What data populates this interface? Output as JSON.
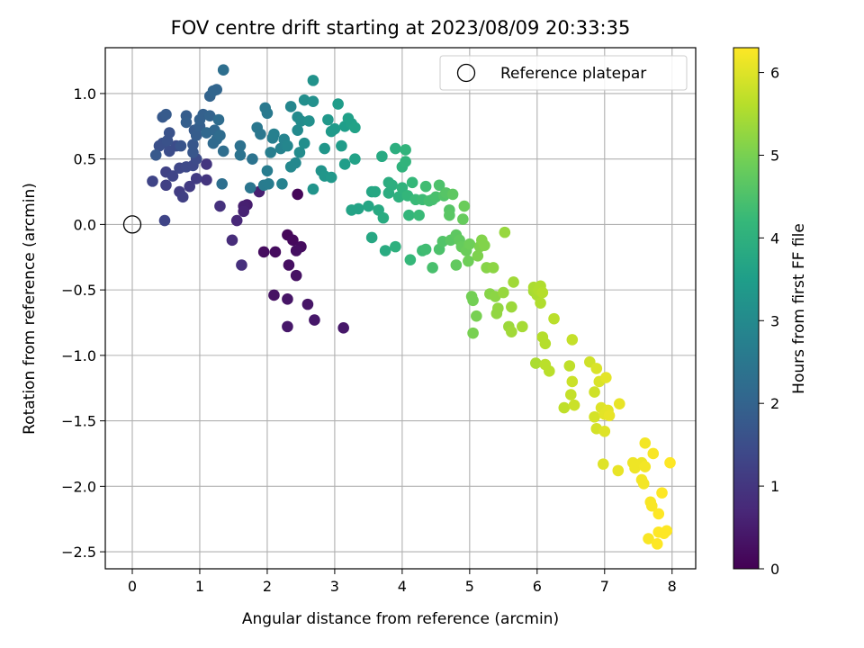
{
  "chart_data": {
    "type": "scatter",
    "title": "FOV centre drift starting at 2023/08/09 20:33:35",
    "xlabel": "Angular distance from reference (arcmin)",
    "ylabel": "Rotation from reference (arcmin)",
    "xlim": [
      -0.4,
      8.35
    ],
    "ylim": [
      -2.63,
      1.35
    ],
    "xticks": [
      "0",
      "1",
      "2",
      "3",
      "4",
      "5",
      "6",
      "7",
      "8"
    ],
    "xtick_values": [
      0,
      1,
      2,
      3,
      4,
      5,
      6,
      7,
      8
    ],
    "yticks": [
      "1.0",
      "0.5",
      "0.0",
      "−0.5",
      "−1.0",
      "−1.5",
      "−2.0",
      "−2.5"
    ],
    "ytick_values": [
      1.0,
      0.5,
      0.0,
      -0.5,
      -1.0,
      -1.5,
      -2.0,
      -2.5
    ],
    "grid": true,
    "legend": {
      "placement": "top-right",
      "entries": [
        {
          "label": "Reference platepar",
          "marker": "open-circle"
        }
      ]
    },
    "reference_point": {
      "x": 0,
      "y": 0
    },
    "colorbar": {
      "label": "Hours from first FF file",
      "colormap": "viridis",
      "range": [
        0,
        6.3
      ],
      "ticks": [
        "0",
        "1",
        "2",
        "3",
        "4",
        "5",
        "6"
      ],
      "tick_values": [
        0,
        1,
        2,
        3,
        4,
        5,
        6
      ]
    },
    "colormap_stops": [
      "#440154",
      "#482878",
      "#3e4989",
      "#31688e",
      "#26828e",
      "#1f9e89",
      "#35b779",
      "#6ece58",
      "#b5de2b",
      "#fde725"
    ],
    "points": [
      {
        "x": 2.45,
        "y": 0.23,
        "h": 0.1
      },
      {
        "x": 2.3,
        "y": -0.08,
        "h": 0.1
      },
      {
        "x": 2.38,
        "y": -0.12,
        "h": 0.15
      },
      {
        "x": 2.5,
        "y": -0.17,
        "h": 0.2
      },
      {
        "x": 1.95,
        "y": -0.21,
        "h": 0.2
      },
      {
        "x": 2.12,
        "y": -0.21,
        "h": 0.2
      },
      {
        "x": 2.32,
        "y": -0.31,
        "h": 0.25
      },
      {
        "x": 2.43,
        "y": -0.2,
        "h": 0.25
      },
      {
        "x": 2.43,
        "y": -0.39,
        "h": 0.3
      },
      {
        "x": 2.1,
        "y": -0.54,
        "h": 0.3
      },
      {
        "x": 2.3,
        "y": -0.57,
        "h": 0.35
      },
      {
        "x": 2.6,
        "y": -0.61,
        "h": 0.35
      },
      {
        "x": 2.3,
        "y": -0.78,
        "h": 0.4
      },
      {
        "x": 2.7,
        "y": -0.73,
        "h": 0.4
      },
      {
        "x": 3.13,
        "y": -0.79,
        "h": 0.4
      },
      {
        "x": 1.7,
        "y": 0.15,
        "h": 0.5
      },
      {
        "x": 1.65,
        "y": 0.14,
        "h": 0.55
      },
      {
        "x": 1.88,
        "y": 0.25,
        "h": 0.55
      },
      {
        "x": 1.65,
        "y": 0.1,
        "h": 0.6
      },
      {
        "x": 1.55,
        "y": 0.03,
        "h": 0.7
      },
      {
        "x": 1.48,
        "y": -0.12,
        "h": 0.8
      },
      {
        "x": 1.62,
        "y": -0.31,
        "h": 0.85
      },
      {
        "x": 1.3,
        "y": 0.14,
        "h": 0.9
      },
      {
        "x": 1.1,
        "y": 0.34,
        "h": 1.0
      },
      {
        "x": 1.1,
        "y": 0.46,
        "h": 1.0
      },
      {
        "x": 0.85,
        "y": 0.29,
        "h": 1.1
      },
      {
        "x": 0.95,
        "y": 0.35,
        "h": 1.1
      },
      {
        "x": 0.7,
        "y": 0.25,
        "h": 1.15
      },
      {
        "x": 0.75,
        "y": 0.21,
        "h": 1.2
      },
      {
        "x": 0.5,
        "y": 0.3,
        "h": 1.2
      },
      {
        "x": 0.5,
        "y": 0.4,
        "h": 1.25
      },
      {
        "x": 0.6,
        "y": 0.37,
        "h": 1.3
      },
      {
        "x": 0.3,
        "y": 0.33,
        "h": 1.3
      },
      {
        "x": 0.48,
        "y": 0.03,
        "h": 1.3
      },
      {
        "x": 0.7,
        "y": 0.43,
        "h": 1.35
      },
      {
        "x": 0.8,
        "y": 0.44,
        "h": 1.4
      },
      {
        "x": 0.9,
        "y": 0.45,
        "h": 1.4
      },
      {
        "x": 0.95,
        "y": 0.5,
        "h": 1.45
      },
      {
        "x": 0.55,
        "y": 0.56,
        "h": 1.5
      },
      {
        "x": 0.65,
        "y": 0.6,
        "h": 1.5
      },
      {
        "x": 0.4,
        "y": 0.6,
        "h": 1.55
      },
      {
        "x": 0.45,
        "y": 0.62,
        "h": 1.55
      },
      {
        "x": 0.52,
        "y": 0.64,
        "h": 1.6
      },
      {
        "x": 0.55,
        "y": 0.7,
        "h": 1.6
      },
      {
        "x": 0.72,
        "y": 0.6,
        "h": 1.65
      },
      {
        "x": 0.9,
        "y": 0.61,
        "h": 1.7
      },
      {
        "x": 0.9,
        "y": 0.55,
        "h": 1.7
      },
      {
        "x": 0.35,
        "y": 0.53,
        "h": 1.75
      },
      {
        "x": 0.45,
        "y": 0.82,
        "h": 1.75
      },
      {
        "x": 0.5,
        "y": 0.84,
        "h": 1.8
      },
      {
        "x": 0.92,
        "y": 0.72,
        "h": 1.8
      },
      {
        "x": 0.95,
        "y": 0.68,
        "h": 1.85
      },
      {
        "x": 0.8,
        "y": 0.83,
        "h": 1.85
      },
      {
        "x": 0.8,
        "y": 0.78,
        "h": 1.9
      },
      {
        "x": 1.0,
        "y": 0.75,
        "h": 1.9
      },
      {
        "x": 1.05,
        "y": 0.84,
        "h": 1.95
      },
      {
        "x": 1.0,
        "y": 0.8,
        "h": 1.95
      },
      {
        "x": 1.15,
        "y": 0.83,
        "h": 2.0
      },
      {
        "x": 1.15,
        "y": 0.98,
        "h": 2.0
      },
      {
        "x": 1.2,
        "y": 1.02,
        "h": 2.05
      },
      {
        "x": 1.25,
        "y": 1.03,
        "h": 2.05
      },
      {
        "x": 1.1,
        "y": 0.7,
        "h": 2.1
      },
      {
        "x": 1.22,
        "y": 0.72,
        "h": 2.1
      },
      {
        "x": 1.2,
        "y": 0.62,
        "h": 2.15
      },
      {
        "x": 1.25,
        "y": 0.65,
        "h": 2.15
      },
      {
        "x": 1.3,
        "y": 0.68,
        "h": 2.2
      },
      {
        "x": 1.28,
        "y": 0.8,
        "h": 2.2
      },
      {
        "x": 1.35,
        "y": 0.56,
        "h": 2.25
      },
      {
        "x": 1.33,
        "y": 0.31,
        "h": 2.3
      },
      {
        "x": 1.35,
        "y": 1.18,
        "h": 2.3
      },
      {
        "x": 1.6,
        "y": 0.6,
        "h": 2.35
      },
      {
        "x": 1.6,
        "y": 0.53,
        "h": 2.4
      },
      {
        "x": 1.78,
        "y": 0.5,
        "h": 2.4
      },
      {
        "x": 1.75,
        "y": 0.28,
        "h": 2.45
      },
      {
        "x": 1.85,
        "y": 0.74,
        "h": 2.5
      },
      {
        "x": 1.9,
        "y": 0.69,
        "h": 2.5
      },
      {
        "x": 1.97,
        "y": 0.89,
        "h": 2.55
      },
      {
        "x": 2.0,
        "y": 0.85,
        "h": 2.55
      },
      {
        "x": 1.95,
        "y": 0.3,
        "h": 2.6
      },
      {
        "x": 2.02,
        "y": 0.31,
        "h": 2.65
      },
      {
        "x": 2.0,
        "y": 0.41,
        "h": 2.65
      },
      {
        "x": 2.05,
        "y": 0.55,
        "h": 2.7
      },
      {
        "x": 2.08,
        "y": 0.66,
        "h": 2.7
      },
      {
        "x": 2.1,
        "y": 0.69,
        "h": 2.75
      },
      {
        "x": 2.22,
        "y": 0.31,
        "h": 2.8
      },
      {
        "x": 2.2,
        "y": 0.58,
        "h": 2.8
      },
      {
        "x": 2.25,
        "y": 0.65,
        "h": 2.85
      },
      {
        "x": 2.3,
        "y": 0.6,
        "h": 2.9
      },
      {
        "x": 2.35,
        "y": 0.9,
        "h": 2.9
      },
      {
        "x": 2.35,
        "y": 0.44,
        "h": 2.95
      },
      {
        "x": 2.42,
        "y": 0.47,
        "h": 2.95
      },
      {
        "x": 2.45,
        "y": 0.82,
        "h": 3.0
      },
      {
        "x": 2.45,
        "y": 0.72,
        "h": 3.0
      },
      {
        "x": 2.48,
        "y": 0.55,
        "h": 3.05
      },
      {
        "x": 2.5,
        "y": 0.79,
        "h": 3.05
      },
      {
        "x": 2.55,
        "y": 0.95,
        "h": 3.1
      },
      {
        "x": 2.55,
        "y": 0.62,
        "h": 3.1
      },
      {
        "x": 2.62,
        "y": 0.79,
        "h": 3.15
      },
      {
        "x": 2.68,
        "y": 0.94,
        "h": 3.15
      },
      {
        "x": 2.68,
        "y": 1.1,
        "h": 3.2
      },
      {
        "x": 2.68,
        "y": 0.27,
        "h": 3.25
      },
      {
        "x": 2.8,
        "y": 0.41,
        "h": 3.25
      },
      {
        "x": 2.85,
        "y": 0.58,
        "h": 3.3
      },
      {
        "x": 2.85,
        "y": 0.37,
        "h": 3.3
      },
      {
        "x": 2.95,
        "y": 0.36,
        "h": 3.35
      },
      {
        "x": 2.9,
        "y": 0.8,
        "h": 3.35
      },
      {
        "x": 2.95,
        "y": 0.71,
        "h": 3.4
      },
      {
        "x": 3.0,
        "y": 0.73,
        "h": 3.4
      },
      {
        "x": 3.05,
        "y": 0.92,
        "h": 3.45
      },
      {
        "x": 3.1,
        "y": 0.6,
        "h": 3.45
      },
      {
        "x": 3.15,
        "y": 0.46,
        "h": 3.5
      },
      {
        "x": 3.15,
        "y": 0.75,
        "h": 3.5
      },
      {
        "x": 3.2,
        "y": 0.81,
        "h": 3.55
      },
      {
        "x": 3.25,
        "y": 0.77,
        "h": 3.55
      },
      {
        "x": 3.3,
        "y": 0.74,
        "h": 3.6
      },
      {
        "x": 3.3,
        "y": 0.5,
        "h": 3.6
      },
      {
        "x": 3.25,
        "y": 0.11,
        "h": 3.65
      },
      {
        "x": 3.35,
        "y": 0.12,
        "h": 3.65
      },
      {
        "x": 3.5,
        "y": 0.14,
        "h": 3.7
      },
      {
        "x": 3.55,
        "y": 0.25,
        "h": 3.7
      },
      {
        "x": 3.55,
        "y": -0.1,
        "h": 3.75
      },
      {
        "x": 3.6,
        "y": 0.25,
        "h": 3.75
      },
      {
        "x": 3.65,
        "y": 0.11,
        "h": 3.8
      },
      {
        "x": 3.7,
        "y": 0.52,
        "h": 3.8
      },
      {
        "x": 3.72,
        "y": 0.05,
        "h": 3.85
      },
      {
        "x": 3.75,
        "y": -0.2,
        "h": 3.85
      },
      {
        "x": 3.8,
        "y": 0.32,
        "h": 3.9
      },
      {
        "x": 3.8,
        "y": 0.24,
        "h": 3.9
      },
      {
        "x": 3.85,
        "y": 0.3,
        "h": 3.95
      },
      {
        "x": 3.9,
        "y": 0.58,
        "h": 3.95
      },
      {
        "x": 3.9,
        "y": -0.17,
        "h": 4.0
      },
      {
        "x": 3.95,
        "y": 0.21,
        "h": 4.0
      },
      {
        "x": 4.0,
        "y": 0.28,
        "h": 4.05
      },
      {
        "x": 4.0,
        "y": 0.44,
        "h": 4.05
      },
      {
        "x": 4.05,
        "y": 0.48,
        "h": 4.1
      },
      {
        "x": 4.05,
        "y": 0.57,
        "h": 4.1
      },
      {
        "x": 4.08,
        "y": 0.22,
        "h": 4.15
      },
      {
        "x": 4.1,
        "y": 0.07,
        "h": 4.15
      },
      {
        "x": 4.12,
        "y": -0.27,
        "h": 4.2
      },
      {
        "x": 4.15,
        "y": 0.32,
        "h": 4.2
      },
      {
        "x": 4.2,
        "y": 0.19,
        "h": 4.25
      },
      {
        "x": 4.25,
        "y": 0.07,
        "h": 4.25
      },
      {
        "x": 4.3,
        "y": 0.19,
        "h": 4.3
      },
      {
        "x": 4.3,
        "y": -0.2,
        "h": 4.3
      },
      {
        "x": 4.35,
        "y": 0.29,
        "h": 4.35
      },
      {
        "x": 4.35,
        "y": -0.19,
        "h": 4.35
      },
      {
        "x": 4.4,
        "y": 0.18,
        "h": 4.4
      },
      {
        "x": 4.45,
        "y": 0.19,
        "h": 4.4
      },
      {
        "x": 4.45,
        "y": -0.33,
        "h": 4.45
      },
      {
        "x": 4.5,
        "y": 0.21,
        "h": 4.45
      },
      {
        "x": 4.55,
        "y": 0.3,
        "h": 4.5
      },
      {
        "x": 4.55,
        "y": -0.19,
        "h": 4.5
      },
      {
        "x": 4.6,
        "y": -0.13,
        "h": 4.55
      },
      {
        "x": 4.62,
        "y": 0.22,
        "h": 4.55
      },
      {
        "x": 4.65,
        "y": 0.24,
        "h": 4.6
      },
      {
        "x": 4.7,
        "y": 0.11,
        "h": 4.6
      },
      {
        "x": 4.7,
        "y": 0.07,
        "h": 4.65
      },
      {
        "x": 4.72,
        "y": -0.12,
        "h": 4.65
      },
      {
        "x": 4.75,
        "y": 0.23,
        "h": 4.7
      },
      {
        "x": 4.8,
        "y": -0.08,
        "h": 4.7
      },
      {
        "x": 4.8,
        "y": -0.31,
        "h": 4.75
      },
      {
        "x": 4.85,
        "y": -0.12,
        "h": 4.75
      },
      {
        "x": 4.88,
        "y": -0.17,
        "h": 4.8
      },
      {
        "x": 4.9,
        "y": 0.04,
        "h": 4.8
      },
      {
        "x": 4.92,
        "y": 0.14,
        "h": 4.85
      },
      {
        "x": 4.95,
        "y": -0.2,
        "h": 4.85
      },
      {
        "x": 4.98,
        "y": -0.28,
        "h": 4.9
      },
      {
        "x": 5.0,
        "y": -0.15,
        "h": 4.9
      },
      {
        "x": 5.03,
        "y": -0.55,
        "h": 4.95
      },
      {
        "x": 5.05,
        "y": -0.58,
        "h": 4.95
      },
      {
        "x": 5.05,
        "y": -0.83,
        "h": 5.0
      },
      {
        "x": 5.1,
        "y": -0.7,
        "h": 5.0
      },
      {
        "x": 5.12,
        "y": -0.24,
        "h": 5.05
      },
      {
        "x": 5.15,
        "y": -0.17,
        "h": 5.05
      },
      {
        "x": 5.18,
        "y": -0.12,
        "h": 5.1
      },
      {
        "x": 5.22,
        "y": -0.16,
        "h": 5.1
      },
      {
        "x": 5.25,
        "y": -0.33,
        "h": 5.15
      },
      {
        "x": 5.3,
        "y": -0.53,
        "h": 5.15
      },
      {
        "x": 5.35,
        "y": -0.33,
        "h": 5.2
      },
      {
        "x": 5.38,
        "y": -0.55,
        "h": 5.2
      },
      {
        "x": 5.4,
        "y": -0.68,
        "h": 5.25
      },
      {
        "x": 5.42,
        "y": -0.64,
        "h": 5.25
      },
      {
        "x": 5.5,
        "y": -0.52,
        "h": 5.3
      },
      {
        "x": 5.52,
        "y": -0.06,
        "h": 5.3
      },
      {
        "x": 5.58,
        "y": -0.78,
        "h": 5.35
      },
      {
        "x": 5.62,
        "y": -0.63,
        "h": 5.35
      },
      {
        "x": 5.62,
        "y": -0.82,
        "h": 5.4
      },
      {
        "x": 5.65,
        "y": -0.44,
        "h": 5.4
      },
      {
        "x": 5.78,
        "y": -0.78,
        "h": 5.45
      },
      {
        "x": 5.95,
        "y": -0.51,
        "h": 5.45
      },
      {
        "x": 5.95,
        "y": -0.48,
        "h": 5.5
      },
      {
        "x": 5.98,
        "y": -1.06,
        "h": 5.5
      },
      {
        "x": 6.0,
        "y": -0.54,
        "h": 5.5
      },
      {
        "x": 6.02,
        "y": -0.5,
        "h": 5.55
      },
      {
        "x": 6.05,
        "y": -0.47,
        "h": 5.55
      },
      {
        "x": 6.05,
        "y": -0.6,
        "h": 5.55
      },
      {
        "x": 6.08,
        "y": -0.52,
        "h": 5.6
      },
      {
        "x": 6.08,
        "y": -0.86,
        "h": 5.6
      },
      {
        "x": 6.12,
        "y": -0.91,
        "h": 5.6
      },
      {
        "x": 6.12,
        "y": -1.07,
        "h": 5.65
      },
      {
        "x": 6.18,
        "y": -1.12,
        "h": 5.65
      },
      {
        "x": 6.25,
        "y": -0.72,
        "h": 5.65
      },
      {
        "x": 6.4,
        "y": -1.4,
        "h": 5.7
      },
      {
        "x": 6.48,
        "y": -1.08,
        "h": 5.7
      },
      {
        "x": 6.5,
        "y": -1.3,
        "h": 5.75
      },
      {
        "x": 6.52,
        "y": -0.88,
        "h": 5.75
      },
      {
        "x": 6.52,
        "y": -1.2,
        "h": 5.8
      },
      {
        "x": 6.55,
        "y": -1.38,
        "h": 5.8
      },
      {
        "x": 6.78,
        "y": -1.05,
        "h": 5.85
      },
      {
        "x": 6.85,
        "y": -1.28,
        "h": 5.85
      },
      {
        "x": 6.85,
        "y": -1.47,
        "h": 5.9
      },
      {
        "x": 6.88,
        "y": -1.56,
        "h": 5.9
      },
      {
        "x": 6.88,
        "y": -1.1,
        "h": 5.95
      },
      {
        "x": 6.92,
        "y": -1.2,
        "h": 5.95
      },
      {
        "x": 6.95,
        "y": -1.4,
        "h": 6.0
      },
      {
        "x": 6.98,
        "y": -1.83,
        "h": 6.0
      },
      {
        "x": 7.0,
        "y": -1.58,
        "h": 6.0
      },
      {
        "x": 7.0,
        "y": -1.45,
        "h": 6.05
      },
      {
        "x": 7.02,
        "y": -1.17,
        "h": 6.05
      },
      {
        "x": 7.05,
        "y": -1.42,
        "h": 6.05
      },
      {
        "x": 7.07,
        "y": -1.46,
        "h": 6.1
      },
      {
        "x": 7.2,
        "y": -1.88,
        "h": 6.1
      },
      {
        "x": 7.22,
        "y": -1.37,
        "h": 6.1
      },
      {
        "x": 7.42,
        "y": -1.82,
        "h": 6.15
      },
      {
        "x": 7.45,
        "y": -1.86,
        "h": 6.15
      },
      {
        "x": 7.55,
        "y": -1.82,
        "h": 6.15
      },
      {
        "x": 7.55,
        "y": -1.95,
        "h": 6.2
      },
      {
        "x": 7.58,
        "y": -1.98,
        "h": 6.2
      },
      {
        "x": 7.6,
        "y": -1.67,
        "h": 6.2
      },
      {
        "x": 7.6,
        "y": -1.85,
        "h": 6.2
      },
      {
        "x": 7.65,
        "y": -2.4,
        "h": 6.25
      },
      {
        "x": 7.68,
        "y": -2.12,
        "h": 6.25
      },
      {
        "x": 7.7,
        "y": -2.15,
        "h": 6.25
      },
      {
        "x": 7.72,
        "y": -1.75,
        "h": 6.25
      },
      {
        "x": 7.78,
        "y": -2.44,
        "h": 6.3
      },
      {
        "x": 7.8,
        "y": -2.21,
        "h": 6.3
      },
      {
        "x": 7.8,
        "y": -2.35,
        "h": 6.3
      },
      {
        "x": 7.85,
        "y": -2.05,
        "h": 6.3
      },
      {
        "x": 7.88,
        "y": -2.36,
        "h": 6.3
      },
      {
        "x": 7.92,
        "y": -2.34,
        "h": 6.3
      },
      {
        "x": 7.97,
        "y": -1.82,
        "h": 6.3
      }
    ]
  }
}
